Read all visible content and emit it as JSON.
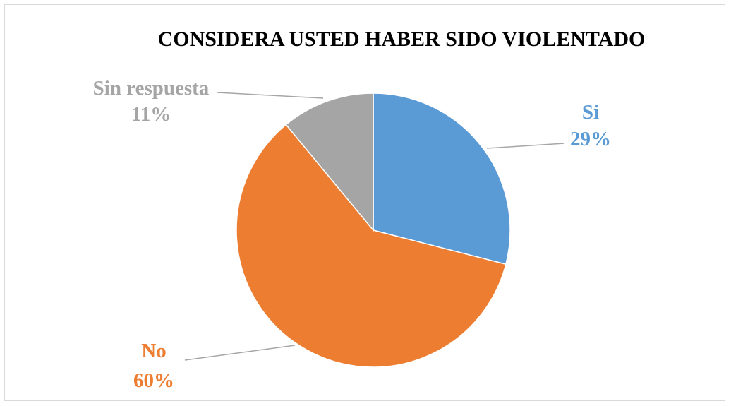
{
  "chart_data": {
    "type": "pie",
    "title": "CONSIDERA USTED HABER SIDO VIOLENTADO",
    "slices": [
      {
        "name": "Si",
        "value": 29,
        "percent_label": "29%",
        "color": "#5b9bd5"
      },
      {
        "name": "No",
        "value": 60,
        "percent_label": "60%",
        "color": "#ed7d31"
      },
      {
        "name": "Sin respuesta",
        "value": 11,
        "percent_label": "11%",
        "color": "#a5a5a5"
      }
    ],
    "start_angle_deg": 0,
    "direction": "clockwise",
    "legend": "none",
    "data_labels": "outside-with-leader-lines"
  }
}
